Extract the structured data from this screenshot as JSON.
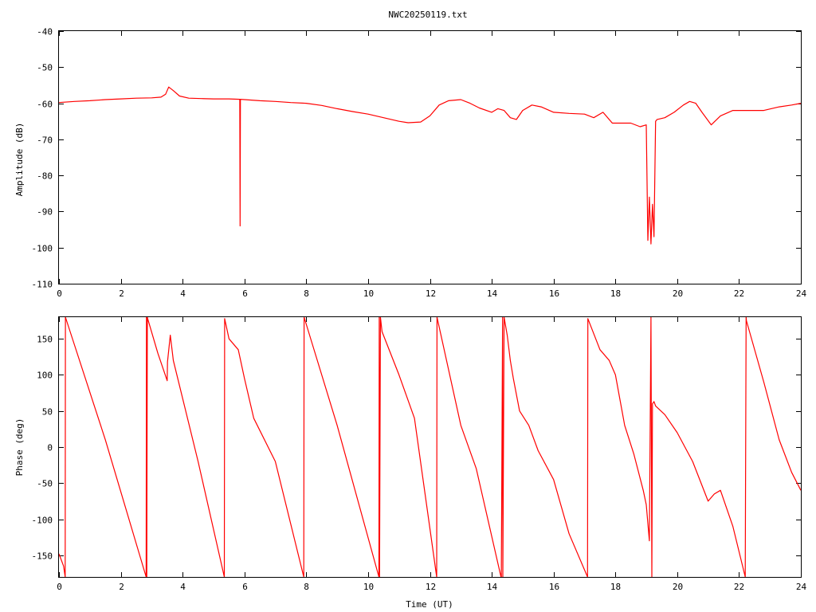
{
  "chart_data": [
    {
      "type": "line",
      "title": "NWC20250119.txt",
      "xlabel": "",
      "ylabel": "Amplitude (dB)",
      "xlim": [
        0,
        24
      ],
      "ylim": [
        -110,
        -40
      ],
      "xticks": [
        "0",
        "2",
        "4",
        "6",
        "8",
        "10",
        "12",
        "14",
        "16",
        "18",
        "20",
        "22",
        "24"
      ],
      "yticks": [
        "-40",
        "-50",
        "-60",
        "-70",
        "-80",
        "-90",
        "-100",
        "-110"
      ],
      "color": "#ff0000",
      "series": [
        {
          "x": [
            0,
            0.5,
            1,
            1.5,
            2,
            2.5,
            3,
            3.3,
            3.45,
            3.55,
            3.7,
            3.9,
            4.2,
            4.6,
            5,
            5.5,
            5.85,
            5.86,
            5.87,
            6,
            6.5,
            7,
            7.5,
            8,
            8.5,
            9,
            9.5,
            10,
            10.5,
            11,
            11.3,
            11.7,
            12,
            12.3,
            12.6,
            13,
            13.3,
            13.6,
            14,
            14.2,
            14.4,
            14.6,
            14.8,
            15,
            15.3,
            15.6,
            16,
            16.5,
            17,
            17.3,
            17.6,
            17.9,
            18.2,
            18.5,
            18.8,
            19.0,
            19.05,
            19.1,
            19.15,
            19.2,
            19.25,
            19.3,
            19.35,
            19.6,
            19.9,
            20.2,
            20.4,
            20.6,
            20.8,
            21.1,
            21.4,
            21.8,
            22.3,
            22.8,
            23.3,
            23.7,
            24
          ],
          "y": [
            -59.8,
            -59.5,
            -59.3,
            -59,
            -58.8,
            -58.6,
            -58.5,
            -58.3,
            -57.5,
            -55.5,
            -56.5,
            -58,
            -58.6,
            -58.7,
            -58.8,
            -58.8,
            -58.9,
            -94,
            -58.9,
            -59,
            -59.3,
            -59.5,
            -59.8,
            -60,
            -60.6,
            -61.5,
            -62.3,
            -63,
            -64,
            -65,
            -65.4,
            -65.2,
            -63.5,
            -60.5,
            -59.3,
            -59,
            -60,
            -61.3,
            -62.5,
            -61.5,
            -62,
            -64,
            -64.5,
            -62,
            -60.5,
            -61,
            -62.5,
            -62.8,
            -63,
            -64,
            -62.5,
            -65.5,
            -65.5,
            -65.5,
            -66.5,
            -66,
            -98,
            -86,
            -99,
            -88,
            -97,
            -65,
            -64.5,
            -64,
            -62.5,
            -60.5,
            -59.5,
            -60,
            -62.5,
            -66,
            -63.5,
            -62,
            -62,
            -62,
            -61,
            -60.5,
            -60
          ]
        }
      ]
    },
    {
      "type": "line",
      "title": "",
      "xlabel": "Time (UT)",
      "ylabel": "Phase (deg)",
      "xlim": [
        0,
        24
      ],
      "ylim": [
        -180,
        180
      ],
      "xticks": [
        "0",
        "2",
        "4",
        "6",
        "8",
        "10",
        "12",
        "14",
        "16",
        "18",
        "20",
        "22",
        "24"
      ],
      "yticks": [
        "150",
        "100",
        "50",
        "0",
        "-50",
        "-100",
        "-150"
      ],
      "color": "#ff0000",
      "series": [
        {
          "x": [
            0,
            0.15,
            0.2,
            0.21,
            1.5,
            2.82,
            2.83,
            2.84,
            2.86,
            2.87,
            3.2,
            3.5,
            3.51,
            3.6,
            3.7,
            4.5,
            5.35,
            5.36,
            5.5,
            5.8,
            6.0,
            6.3,
            7.0,
            7.92,
            7.93,
            9.0,
            10.35,
            10.36,
            10.37,
            10.4,
            10.45,
            11.0,
            11.5,
            12.22,
            12.23,
            13.0,
            13.5,
            14.3,
            14.31,
            14.35,
            14.36,
            14.4,
            14.5,
            14.6,
            14.7,
            14.9,
            15.2,
            15.5,
            16.0,
            16.5,
            17.1,
            17.11,
            17.5,
            17.8,
            18.0,
            18.3,
            18.6,
            18.9,
            19.0,
            19.1,
            19.15,
            19.18,
            19.2,
            19.25,
            19.3,
            19.6,
            20.0,
            20.5,
            21.0,
            21.2,
            21.4,
            21.8,
            22.2,
            22.23,
            22.24,
            22.8,
            23.3,
            23.7,
            24
          ],
          "y": [
            -148,
            -165,
            -180,
            180,
            10,
            -180,
            180,
            -180,
            180,
            178,
            130,
            92,
            118,
            155,
            120,
            -20,
            -180,
            178,
            150,
            135,
            95,
            40,
            -20,
            -180,
            180,
            30,
            -180,
            180,
            -180,
            180,
            160,
            100,
            40,
            -180,
            180,
            30,
            -30,
            -180,
            -180,
            180,
            -180,
            180,
            155,
            120,
            95,
            50,
            30,
            -5,
            -45,
            -120,
            -180,
            178,
            135,
            120,
            100,
            30,
            -10,
            -60,
            -80,
            -130,
            180,
            -180,
            60,
            63,
            57,
            45,
            20,
            -20,
            -75,
            -65,
            -60,
            -110,
            -180,
            180,
            175,
            90,
            10,
            -35,
            -60
          ]
        }
      ]
    }
  ]
}
